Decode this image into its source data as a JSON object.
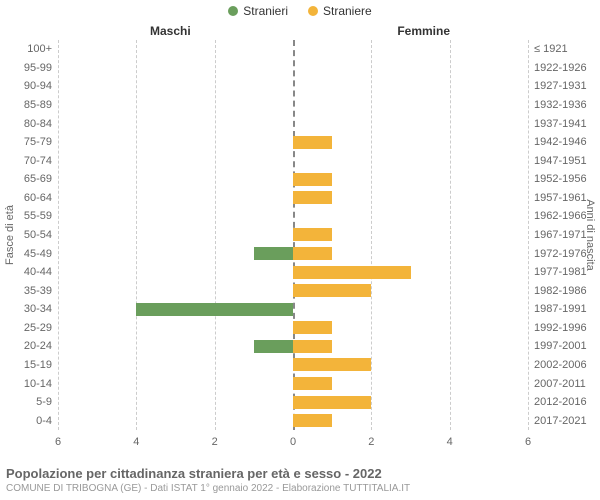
{
  "legend": {
    "male": {
      "label": "Stranieri",
      "color": "#6a9e5c"
    },
    "female": {
      "label": "Straniere",
      "color": "#f3b43a"
    }
  },
  "headers": {
    "left": "Maschi",
    "right": "Femmine"
  },
  "axis_titles": {
    "left": "Fasce di età",
    "right": "Anni di nascita"
  },
  "chart": {
    "type": "pyramid-bar",
    "xmax": 6,
    "xtick_step": 2,
    "grid_color": "#cccccc",
    "center_color": "#888888",
    "background": "#ffffff",
    "label_fontsize": 11,
    "rows": [
      {
        "age": "100+",
        "birth": "≤ 1921",
        "m": 0,
        "f": 0
      },
      {
        "age": "95-99",
        "birth": "1922-1926",
        "m": 0,
        "f": 0
      },
      {
        "age": "90-94",
        "birth": "1927-1931",
        "m": 0,
        "f": 0
      },
      {
        "age": "85-89",
        "birth": "1932-1936",
        "m": 0,
        "f": 0
      },
      {
        "age": "80-84",
        "birth": "1937-1941",
        "m": 0,
        "f": 0
      },
      {
        "age": "75-79",
        "birth": "1942-1946",
        "m": 0,
        "f": 1
      },
      {
        "age": "70-74",
        "birth": "1947-1951",
        "m": 0,
        "f": 0
      },
      {
        "age": "65-69",
        "birth": "1952-1956",
        "m": 0,
        "f": 1
      },
      {
        "age": "60-64",
        "birth": "1957-1961",
        "m": 0,
        "f": 1
      },
      {
        "age": "55-59",
        "birth": "1962-1966",
        "m": 0,
        "f": 0
      },
      {
        "age": "50-54",
        "birth": "1967-1971",
        "m": 0,
        "f": 1
      },
      {
        "age": "45-49",
        "birth": "1972-1976",
        "m": 1,
        "f": 1
      },
      {
        "age": "40-44",
        "birth": "1977-1981",
        "m": 0,
        "f": 3
      },
      {
        "age": "35-39",
        "birth": "1982-1986",
        "m": 0,
        "f": 2
      },
      {
        "age": "30-34",
        "birth": "1987-1991",
        "m": 4,
        "f": 0
      },
      {
        "age": "25-29",
        "birth": "1992-1996",
        "m": 0,
        "f": 1
      },
      {
        "age": "20-24",
        "birth": "1997-2001",
        "m": 1,
        "f": 1
      },
      {
        "age": "15-19",
        "birth": "2002-2006",
        "m": 0,
        "f": 2
      },
      {
        "age": "10-14",
        "birth": "2007-2011",
        "m": 0,
        "f": 1
      },
      {
        "age": "5-9",
        "birth": "2012-2016",
        "m": 0,
        "f": 2
      },
      {
        "age": "0-4",
        "birth": "2017-2021",
        "m": 0,
        "f": 1
      }
    ]
  },
  "footer": {
    "title": "Popolazione per cittadinanza straniera per età e sesso - 2022",
    "subtitle": "COMUNE DI TRIBOGNA (GE) - Dati ISTAT 1° gennaio 2022 - Elaborazione TUTTITALIA.IT"
  }
}
